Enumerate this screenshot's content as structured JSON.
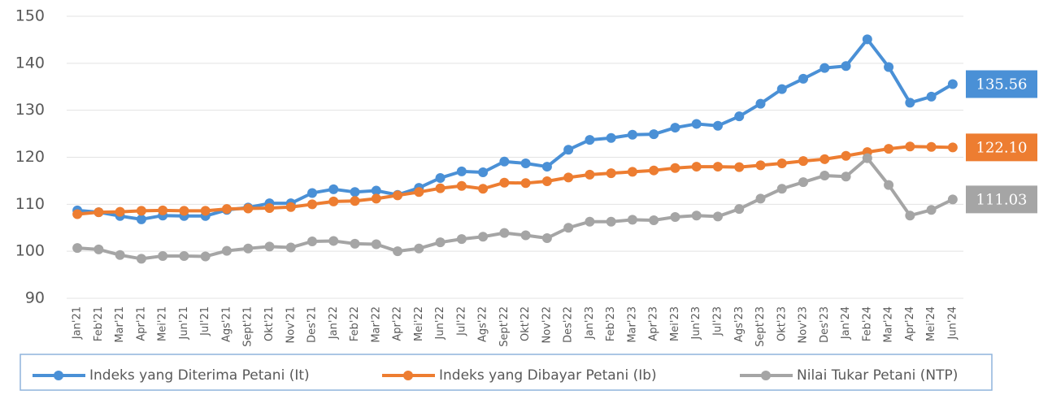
{
  "chart_data": {
    "type": "line",
    "categories": [
      "Jan'21",
      "Feb'21",
      "Mar'21",
      "Apr'21",
      "Mei'21",
      "Jun'21",
      "Jul'21",
      "Ags'21",
      "Sept'21",
      "Okt'21",
      "Nov'21",
      "Des'21",
      "Jan'22",
      "Feb'22",
      "Mar'22",
      "Apr'22",
      "Mei'22",
      "Jun'22",
      "Jul'22",
      "Ags'22",
      "Sept'22",
      "Okt'22",
      "Nov'22",
      "Des'22",
      "Jan'23",
      "Feb'23",
      "Mar'23",
      "Apr'23",
      "Mei'23",
      "Jun'23",
      "Jul'23",
      "Ags'23",
      "Sept'23",
      "Okt'23",
      "Nov'23",
      "Des'23",
      "Jan'24",
      "Feb'24",
      "Mar'24",
      "Apr'24",
      "Mei'24",
      "Jun'24"
    ],
    "series": [
      {
        "name": "Indeks yang Diterima Petani (It)",
        "color": "#4a90d6",
        "values": [
          108.7,
          108.3,
          107.5,
          106.8,
          107.6,
          107.5,
          107.5,
          108.8,
          109.3,
          110.2,
          110.2,
          112.4,
          113.2,
          112.6,
          112.9,
          112.0,
          113.5,
          115.6,
          117.0,
          116.8,
          119.1,
          118.7,
          118.0,
          121.6,
          123.7,
          124.1,
          124.8,
          124.9,
          126.3,
          127.1,
          126.7,
          128.7,
          131.4,
          134.5,
          136.7,
          139.0,
          139.4,
          145.1,
          139.2,
          131.6,
          132.9,
          135.56
        ],
        "value_labels": [
          null,
          null,
          null,
          null,
          null,
          null,
          null,
          null,
          null,
          null,
          null,
          null,
          null,
          null,
          null,
          null,
          null,
          null,
          null,
          null,
          null,
          null,
          null,
          null,
          null,
          null,
          null,
          null,
          null,
          null,
          null,
          null,
          null,
          null,
          null,
          null,
          null,
          null,
          null,
          null,
          null,
          "135.56"
        ]
      },
      {
        "name": "Indeks yang Dibayar Petani (Ib)",
        "color": "#ed7d31",
        "values": [
          107.9,
          108.3,
          108.4,
          108.6,
          108.7,
          108.6,
          108.6,
          109.0,
          109.1,
          109.2,
          109.4,
          110.0,
          110.6,
          110.7,
          111.2,
          111.9,
          112.6,
          113.4,
          113.9,
          113.3,
          114.6,
          114.5,
          114.9,
          115.7,
          116.3,
          116.6,
          116.9,
          117.2,
          117.7,
          118.0,
          118.0,
          117.9,
          118.3,
          118.7,
          119.2,
          119.6,
          120.3,
          121.1,
          121.8,
          122.3,
          122.2,
          122.1
        ],
        "value_labels": [
          null,
          null,
          null,
          null,
          null,
          null,
          null,
          null,
          null,
          null,
          null,
          null,
          null,
          null,
          null,
          null,
          null,
          null,
          null,
          null,
          null,
          null,
          null,
          null,
          null,
          null,
          null,
          null,
          null,
          null,
          null,
          null,
          null,
          null,
          null,
          null,
          null,
          null,
          null,
          null,
          null,
          "122.10"
        ]
      },
      {
        "name": "Nilai Tukar Petani (NTP)",
        "color": "#a5a5a5",
        "values": [
          100.7,
          100.4,
          99.2,
          98.4,
          99.0,
          99.0,
          98.9,
          100.1,
          100.6,
          101.0,
          100.8,
          102.1,
          102.2,
          101.6,
          101.5,
          100.0,
          100.6,
          101.9,
          102.6,
          103.1,
          103.9,
          103.4,
          102.8,
          105.0,
          106.3,
          106.3,
          106.7,
          106.6,
          107.3,
          107.6,
          107.4,
          109.0,
          111.2,
          113.3,
          114.7,
          116.1,
          115.9,
          119.8,
          114.1,
          107.6,
          108.8,
          111.03
        ],
        "value_labels": [
          null,
          null,
          null,
          null,
          null,
          null,
          null,
          null,
          null,
          null,
          null,
          null,
          null,
          null,
          null,
          null,
          null,
          null,
          null,
          null,
          null,
          null,
          null,
          null,
          null,
          null,
          null,
          null,
          null,
          null,
          null,
          null,
          null,
          null,
          null,
          null,
          null,
          null,
          null,
          null,
          null,
          "111.03"
        ]
      }
    ],
    "ylim": [
      90,
      150
    ],
    "yticks": [
      90,
      100,
      110,
      120,
      130,
      140,
      150
    ],
    "grid": true,
    "legend": "bottom"
  }
}
